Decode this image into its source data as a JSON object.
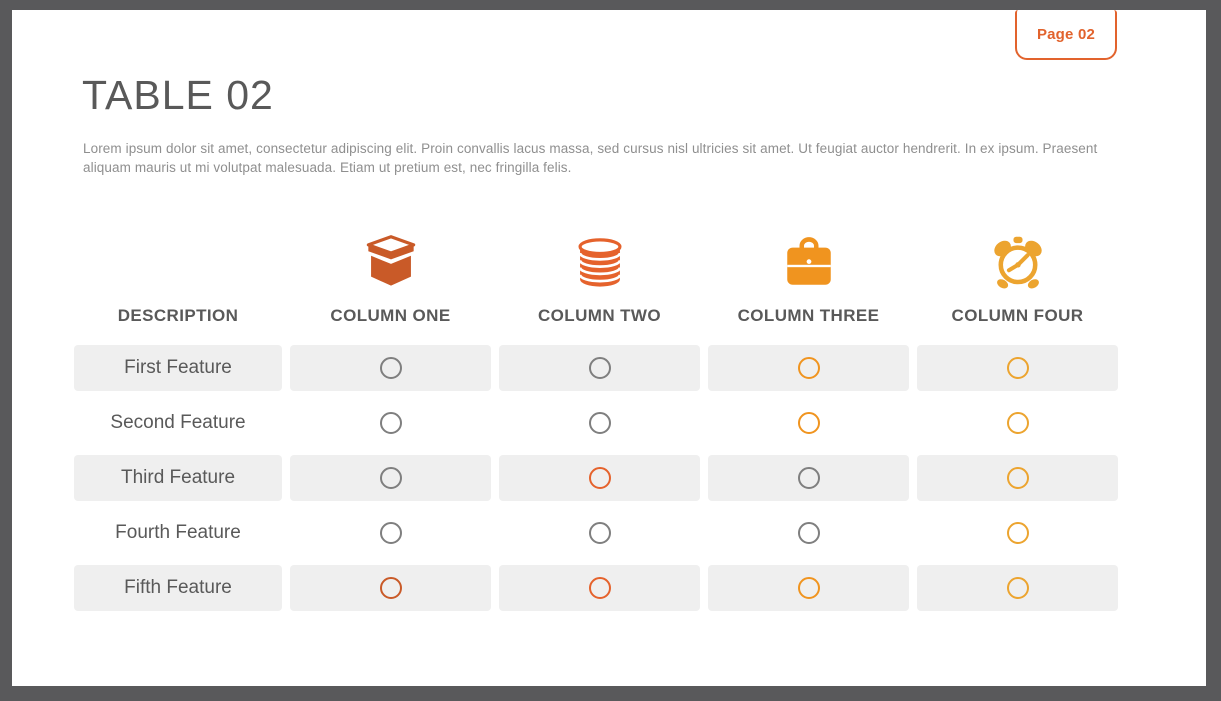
{
  "page_badge": {
    "label": "Page 02",
    "color": "#e2632d"
  },
  "header": {
    "title": "TABLE 02",
    "description": "Lorem ipsum dolor sit amet, consectetur adipiscing elit. Proin convallis lacus massa, sed cursus nisl ultricies sit amet. Ut feugiat auctor hendrerit. In ex ipsum. Praesent aliquam mauris ut mi volutpat malesuada. Etiam ut pretium est, nec fringilla felis."
  },
  "table": {
    "description_header": "DESCRIPTION",
    "columns": [
      {
        "label": "COLUMN ONE",
        "icon": "box-icon",
        "accent": "#c95a28"
      },
      {
        "label": "COLUMN TWO",
        "icon": "database-icon",
        "accent": "#e5622c"
      },
      {
        "label": "COLUMN THREE",
        "icon": "briefcase-icon",
        "accent": "#f0941f"
      },
      {
        "label": "COLUMN FOUR",
        "icon": "alarm-clock-icon",
        "accent": "#eca42f"
      }
    ],
    "circle_gray": "#7f7f7f",
    "row_background": "#efefef",
    "rows": [
      {
        "label": "First Feature",
        "marks": [
          false,
          false,
          true,
          true
        ]
      },
      {
        "label": "Second Feature",
        "marks": [
          false,
          false,
          true,
          true
        ]
      },
      {
        "label": "Third Feature",
        "marks": [
          false,
          true,
          false,
          true
        ]
      },
      {
        "label": "Fourth Feature",
        "marks": [
          false,
          false,
          false,
          true
        ]
      },
      {
        "label": "Fifth Feature",
        "marks": [
          true,
          true,
          true,
          true
        ]
      }
    ]
  }
}
